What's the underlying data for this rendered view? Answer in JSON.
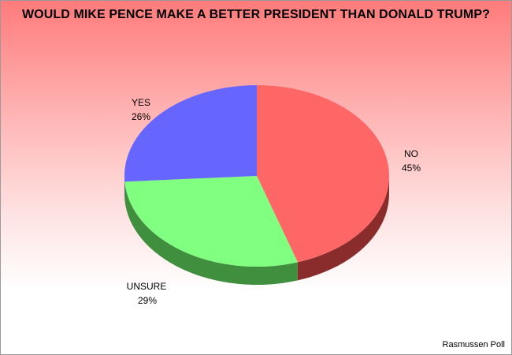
{
  "chart_data": {
    "type": "pie",
    "title": "WOULD MIKE PENCE MAKE A BETTER PRESIDENT THAN DONALD TRUMP?",
    "slices": [
      {
        "label": "NO",
        "value": 45,
        "value_label": "45%",
        "color": "#ff6666",
        "side_color": "#8b2c2c"
      },
      {
        "label": "UNSURE",
        "value": 29,
        "value_label": "29%",
        "color": "#80ff80",
        "side_color": "#3f8f3f"
      },
      {
        "label": "YES",
        "value": 26,
        "value_label": "26%",
        "color": "#6666ff",
        "side_color": "#333399"
      }
    ],
    "source": "Rasmussen Poll"
  }
}
